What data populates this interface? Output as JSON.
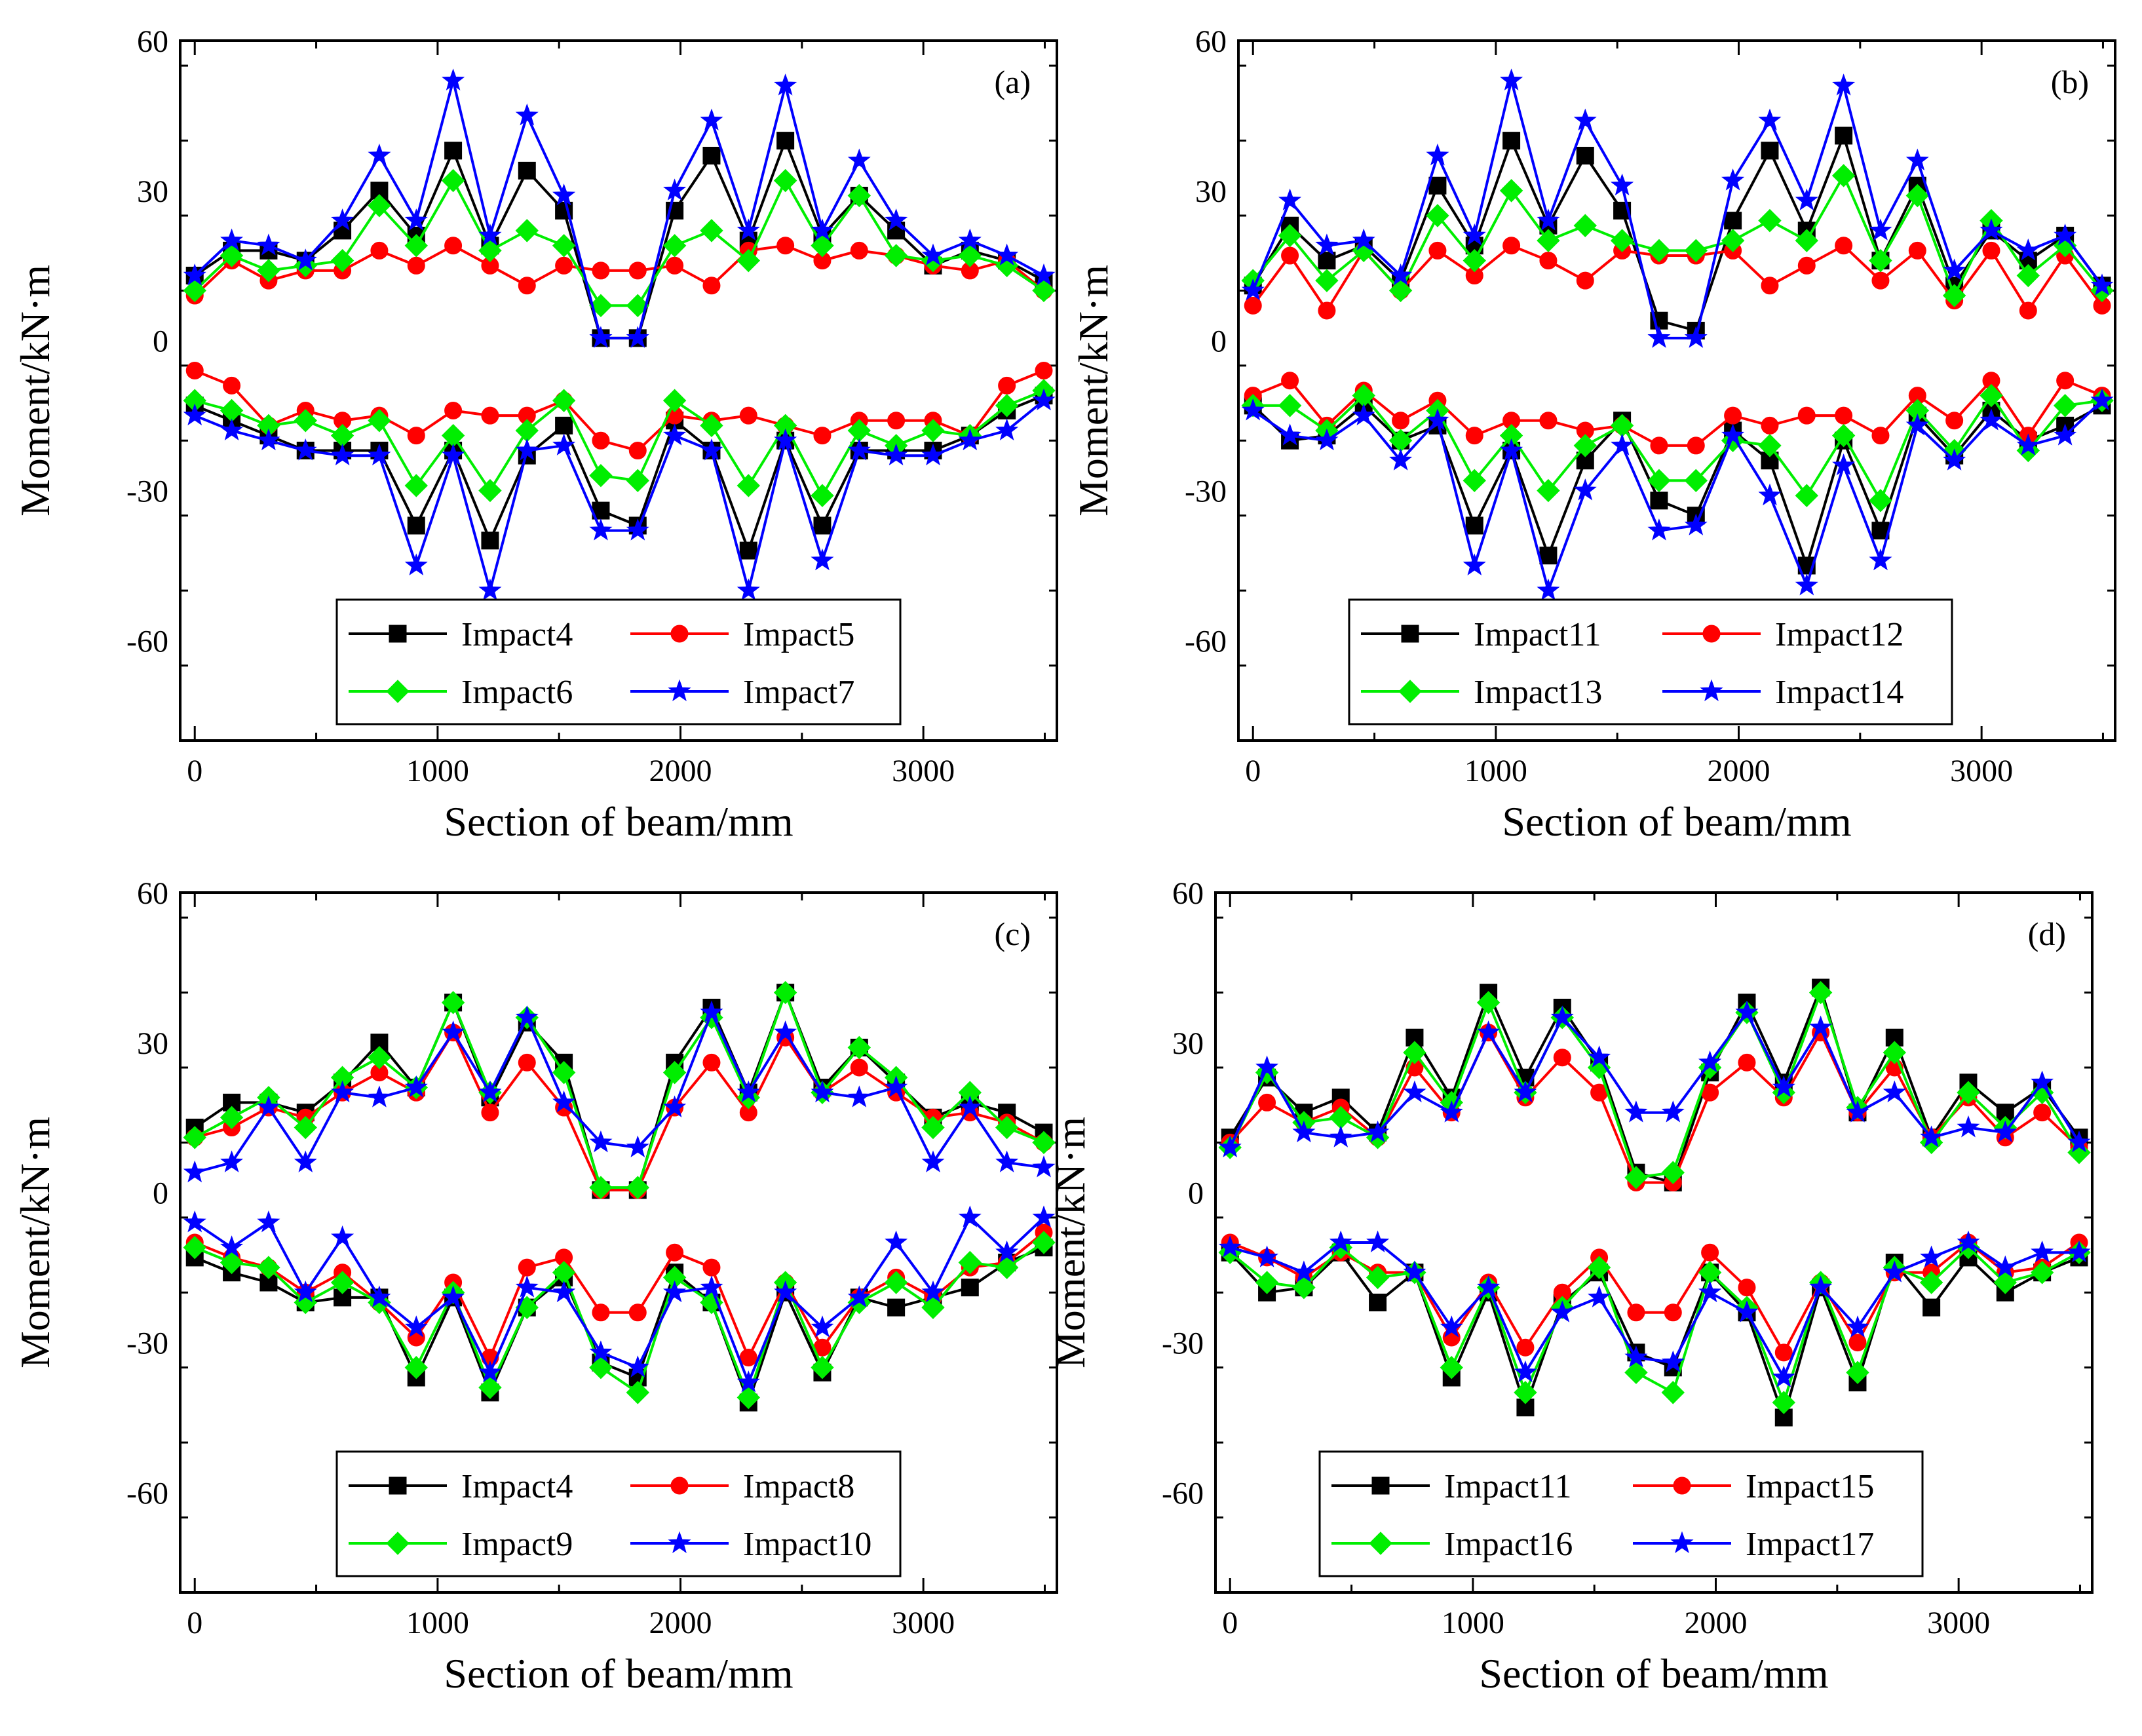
{
  "figure": {
    "panels": [
      "a",
      "b",
      "c",
      "d"
    ]
  },
  "chart_data": [
    {
      "type": "line",
      "panel_label": "(a)",
      "xlabel": "Section of beam/mm",
      "ylabel": "Moment/kN·m",
      "xlim": [
        -60,
        3550
      ],
      "ylim": [
        -80,
        60
      ],
      "xticks": [
        0,
        1000,
        2000,
        3000
      ],
      "yticks": [
        -60,
        -30,
        0,
        30,
        60
      ],
      "legend_position": "bottom-center",
      "x": [
        0,
        152,
        304,
        456,
        608,
        760,
        912,
        1064,
        1216,
        1368,
        1520,
        1672,
        1824,
        1976,
        2128,
        2280,
        2432,
        2584,
        2736,
        2888,
        3040,
        3192,
        3344,
        3496
      ],
      "series": [
        {
          "name": "Impact4",
          "color": "#000000",
          "marker": "square",
          "pos": [
            13,
            18,
            18,
            16,
            22,
            30,
            21,
            38,
            19,
            34,
            26,
            0.5,
            0.5,
            26,
            37,
            20,
            40,
            21,
            29,
            22,
            15,
            18,
            16,
            12
          ],
          "neg": [
            -13,
            -16,
            -19,
            -22,
            -22,
            -22,
            -37,
            -22,
            -40,
            -23,
            -17,
            -34,
            -37,
            -16,
            -22,
            -42,
            -20,
            -37,
            -22,
            -22,
            -22,
            -19,
            -14,
            -11
          ]
        },
        {
          "name": "Impact5",
          "color": "#ff0000",
          "marker": "circle",
          "pos": [
            9,
            16,
            12,
            14,
            14,
            18,
            15,
            19,
            15,
            11,
            15,
            14,
            14,
            15,
            11,
            18,
            19,
            16,
            18,
            17,
            15,
            14,
            16,
            10
          ],
          "neg": [
            -6,
            -9,
            -17,
            -14,
            -16,
            -15,
            -19,
            -14,
            -15,
            -15,
            -12,
            -20,
            -22,
            -15,
            -16,
            -15,
            -17,
            -19,
            -16,
            -16,
            -16,
            -19,
            -9,
            -6
          ]
        },
        {
          "name": "Impact6",
          "color": "#00ee00",
          "marker": "diamond",
          "pos": [
            10,
            17,
            14,
            15,
            16,
            27,
            19,
            32,
            18,
            22,
            19,
            7,
            7,
            19,
            22,
            16,
            32,
            19,
            29,
            17,
            16,
            17,
            15,
            10
          ],
          "neg": [
            -12,
            -14,
            -17,
            -16,
            -19,
            -16,
            -29,
            -19,
            -30,
            -18,
            -12,
            -27,
            -28,
            -12,
            -17,
            -29,
            -17,
            -31,
            -18,
            -21,
            -18,
            -19,
            -13,
            -10
          ]
        },
        {
          "name": "Impact7",
          "color": "#0000ff",
          "marker": "star",
          "pos": [
            13,
            20,
            19,
            16,
            24,
            37,
            24,
            52,
            21,
            45,
            29,
            0.5,
            0.5,
            30,
            44,
            22,
            51,
            22,
            36,
            24,
            17,
            20,
            17,
            13
          ],
          "neg": [
            -15,
            -18,
            -20,
            -22,
            -23,
            -23,
            -45,
            -23,
            -50,
            -22,
            -21,
            -38,
            -38,
            -19,
            -22,
            -50,
            -20,
            -44,
            -22,
            -23,
            -23,
            -20,
            -18,
            -12
          ]
        }
      ]
    },
    {
      "type": "line",
      "panel_label": "(b)",
      "xlabel": "Section of beam/mm",
      "ylabel": "Moment/kN·m",
      "xlim": [
        -60,
        3550
      ],
      "ylim": [
        -80,
        60
      ],
      "xticks": [
        0,
        1000,
        2000,
        3000
      ],
      "yticks": [
        -60,
        -30,
        0,
        30,
        60
      ],
      "legend_position": "bottom-center",
      "x": [
        0,
        152,
        304,
        456,
        608,
        760,
        912,
        1064,
        1216,
        1368,
        1520,
        1672,
        1824,
        1976,
        2128,
        2280,
        2432,
        2584,
        2736,
        2888,
        3040,
        3192,
        3344,
        3496
      ],
      "series": [
        {
          "name": "Impact11",
          "color": "#000000",
          "marker": "square",
          "pos": [
            11,
            23,
            16,
            19,
            12,
            31,
            19,
            40,
            23,
            37,
            26,
            4,
            2,
            24,
            38,
            22,
            41,
            16,
            31,
            11,
            22,
            16,
            21,
            11
          ],
          "neg": [
            -13,
            -20,
            -19,
            -13,
            -20,
            -17,
            -37,
            -22,
            -43,
            -24,
            -16,
            -32,
            -35,
            -18,
            -24,
            -45,
            -20,
            -38,
            -15,
            -23,
            -14,
            -20,
            -17,
            -13
          ]
        },
        {
          "name": "Impact12",
          "color": "#ff0000",
          "marker": "circle",
          "pos": [
            7,
            17,
            6,
            18,
            10,
            18,
            13,
            19,
            16,
            12,
            18,
            17,
            17,
            18,
            11,
            15,
            19,
            12,
            18,
            8,
            18,
            6,
            17,
            7
          ],
          "neg": [
            -11,
            -8,
            -17,
            -10,
            -16,
            -12,
            -19,
            -16,
            -16,
            -18,
            -17,
            -21,
            -21,
            -15,
            -17,
            -15,
            -15,
            -19,
            -11,
            -16,
            -8,
            -19,
            -8,
            -11
          ]
        },
        {
          "name": "Impact13",
          "color": "#00ee00",
          "marker": "diamond",
          "pos": [
            12,
            21,
            12,
            18,
            10,
            25,
            16,
            30,
            20,
            23,
            20,
            18,
            18,
            20,
            24,
            20,
            33,
            16,
            29,
            9,
            24,
            13,
            19,
            10
          ],
          "neg": [
            -13,
            -13,
            -18,
            -11,
            -20,
            -14,
            -28,
            -19,
            -30,
            -21,
            -17,
            -28,
            -28,
            -20,
            -21,
            -31,
            -19,
            -32,
            -14,
            -22,
            -11,
            -22,
            -13,
            -12
          ]
        },
        {
          "name": "Impact14",
          "color": "#0000ff",
          "marker": "star",
          "pos": [
            10,
            28,
            19,
            20,
            13,
            37,
            21,
            52,
            24,
            44,
            31,
            0.5,
            0.5,
            32,
            44,
            28,
            51,
            22,
            36,
            14,
            22,
            18,
            21,
            11
          ],
          "neg": [
            -14,
            -19,
            -20,
            -15,
            -24,
            -16,
            -45,
            -22,
            -50,
            -30,
            -21,
            -38,
            -37,
            -19,
            -31,
            -49,
            -25,
            -44,
            -17,
            -24,
            -16,
            -21,
            -19,
            -12
          ]
        }
      ]
    },
    {
      "type": "line",
      "panel_label": "(c)",
      "xlabel": "Section of beam/mm",
      "ylabel": "Moment/kN·m",
      "xlim": [
        -60,
        3550
      ],
      "ylim": [
        -80,
        60
      ],
      "xticks": [
        0,
        1000,
        2000,
        3000
      ],
      "yticks": [
        -60,
        -30,
        0,
        30,
        60
      ],
      "legend_position": "bottom-center",
      "x": [
        0,
        152,
        304,
        456,
        608,
        760,
        912,
        1064,
        1216,
        1368,
        1520,
        1672,
        1824,
        1976,
        2128,
        2280,
        2432,
        2584,
        2736,
        2888,
        3040,
        3192,
        3344,
        3496
      ],
      "series": [
        {
          "name": "Impact4",
          "color": "#000000",
          "marker": "square",
          "pos": [
            13,
            18,
            18,
            16,
            22,
            30,
            21,
            38,
            19,
            34,
            26,
            0.5,
            0.5,
            26,
            37,
            20,
            40,
            21,
            29,
            22,
            15,
            18,
            16,
            12
          ],
          "neg": [
            -13,
            -16,
            -18,
            -22,
            -21,
            -21,
            -37,
            -21,
            -40,
            -23,
            -17,
            -34,
            -37,
            -16,
            -22,
            -42,
            -20,
            -36,
            -21,
            -23,
            -21,
            -19,
            -14,
            -11
          ]
        },
        {
          "name": "Impact8",
          "color": "#ff0000",
          "marker": "circle",
          "pos": [
            11,
            13,
            17,
            15,
            20,
            24,
            20,
            32,
            16,
            26,
            17,
            0.5,
            0.5,
            17,
            26,
            16,
            31,
            20,
            25,
            20,
            15,
            16,
            14,
            10
          ],
          "neg": [
            -10,
            -13,
            -15,
            -20,
            -16,
            -22,
            -29,
            -18,
            -33,
            -15,
            -13,
            -24,
            -24,
            -12,
            -15,
            -33,
            -18,
            -31,
            -21,
            -17,
            -21,
            -15,
            -14,
            -8
          ]
        },
        {
          "name": "Impact9",
          "color": "#00ee00",
          "marker": "diamond",
          "pos": [
            11,
            15,
            19,
            13,
            23,
            27,
            21,
            38,
            20,
            35,
            24,
            1,
            1,
            24,
            35,
            19,
            40,
            20,
            29,
            23,
            13,
            20,
            13,
            10
          ],
          "neg": [
            -11,
            -14,
            -15,
            -22,
            -18,
            -22,
            -35,
            -20,
            -39,
            -23,
            -16,
            -35,
            -40,
            -17,
            -22,
            -41,
            -18,
            -35,
            -22,
            -18,
            -23,
            -14,
            -15,
            -10
          ]
        },
        {
          "name": "Impact10",
          "color": "#0000ff",
          "marker": "star",
          "pos": [
            4,
            6,
            17,
            6,
            20,
            19,
            21,
            32,
            20,
            35,
            18,
            10,
            9,
            17,
            36,
            20,
            32,
            20,
            19,
            21,
            6,
            17,
            6,
            5
          ],
          "neg": [
            -6,
            -11,
            -6,
            -20,
            -9,
            -21,
            -27,
            -21,
            -36,
            -19,
            -20,
            -32,
            -35,
            -20,
            -19,
            -38,
            -20,
            -27,
            -21,
            -10,
            -20,
            -5,
            -12,
            -5
          ]
        }
      ]
    },
    {
      "type": "line",
      "panel_label": "(d)",
      "xlabel": "Section of beam/mm",
      "ylabel": "Moment/kN·m",
      "xlim": [
        -60,
        3550
      ],
      "ylim": [
        -80,
        60
      ],
      "xticks": [
        0,
        1000,
        2000,
        3000
      ],
      "yticks": [
        -60,
        -30,
        0,
        30,
        60
      ],
      "legend_position": "bottom-center",
      "x": [
        0,
        152,
        304,
        456,
        608,
        760,
        912,
        1064,
        1216,
        1368,
        1520,
        1672,
        1824,
        1976,
        2128,
        2280,
        2432,
        2584,
        2736,
        2888,
        3040,
        3192,
        3344,
        3496
      ],
      "series": [
        {
          "name": "Impact11",
          "color": "#000000",
          "marker": "square",
          "pos": [
            11,
            23,
            16,
            19,
            12,
            31,
            19,
            40,
            23,
            37,
            26,
            4,
            2,
            24,
            38,
            22,
            41,
            16,
            31,
            11,
            22,
            16,
            21,
            11
          ],
          "neg": [
            -12,
            -20,
            -19,
            -12,
            -22,
            -16,
            -37,
            -20,
            -43,
            -22,
            -16,
            -32,
            -35,
            -16,
            -24,
            -45,
            -19,
            -38,
            -14,
            -23,
            -13,
            -20,
            -16,
            -13
          ]
        },
        {
          "name": "Impact15",
          "color": "#ff0000",
          "marker": "circle",
          "pos": [
            10,
            18,
            14,
            17,
            11,
            25,
            16,
            32,
            19,
            27,
            20,
            2,
            2,
            20,
            26,
            19,
            32,
            16,
            25,
            11,
            19,
            11,
            16,
            9
          ],
          "neg": [
            -10,
            -13,
            -17,
            -12,
            -16,
            -16,
            -29,
            -18,
            -31,
            -20,
            -13,
            -24,
            -24,
            -12,
            -19,
            -32,
            -18,
            -30,
            -16,
            -16,
            -10,
            -16,
            -15,
            -10
          ]
        },
        {
          "name": "Impact16",
          "color": "#00ee00",
          "marker": "diamond",
          "pos": [
            9,
            24,
            14,
            15,
            11,
            28,
            18,
            38,
            20,
            35,
            25,
            3,
            4,
            25,
            36,
            20,
            40,
            17,
            28,
            10,
            20,
            13,
            20,
            8
          ],
          "neg": [
            -12,
            -18,
            -19,
            -11,
            -17,
            -16,
            -35,
            -19,
            -40,
            -23,
            -15,
            -36,
            -40,
            -16,
            -23,
            -42,
            -18,
            -36,
            -15,
            -18,
            -11,
            -18,
            -16,
            -12
          ]
        },
        {
          "name": "Impact17",
          "color": "#0000ff",
          "marker": "star",
          "pos": [
            9,
            25,
            12,
            11,
            12,
            20,
            16,
            32,
            20,
            35,
            27,
            16,
            16,
            26,
            36,
            21,
            33,
            16,
            20,
            11,
            13,
            12,
            22,
            10
          ],
          "neg": [
            -11,
            -13,
            -16,
            -10,
            -10,
            -16,
            -27,
            -19,
            -36,
            -24,
            -21,
            -33,
            -34,
            -20,
            -24,
            -37,
            -19,
            -27,
            -16,
            -13,
            -10,
            -15,
            -12,
            -12
          ]
        }
      ]
    }
  ]
}
